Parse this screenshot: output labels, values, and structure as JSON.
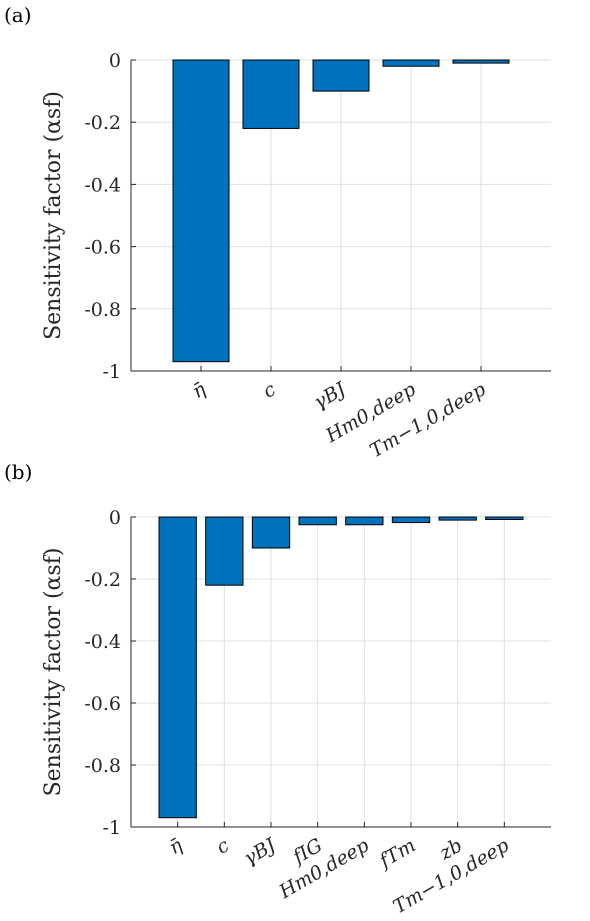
{
  "chart_data": [
    {
      "type": "bar",
      "panel_label": "(a)",
      "ylabel": "Sensitivity factor (αsf)",
      "ylim": [
        -1,
        0
      ],
      "yticks": [
        0,
        -0.2,
        -0.4,
        -0.6,
        -0.8,
        -1
      ],
      "ytick_labels": [
        "0",
        "-0.2",
        "-0.4",
        "-0.6",
        "-0.8",
        "-1"
      ],
      "grid": true,
      "categories": [
        "η̄",
        "c",
        "γBJ",
        "Hm0,deep",
        "Tm−1,0,deep"
      ],
      "values": [
        -0.97,
        -0.22,
        -0.1,
        -0.02,
        -0.01
      ],
      "bar_color": "#0072bd"
    },
    {
      "type": "bar",
      "panel_label": "(b)",
      "ylabel": "Sensitivity factor (αsf)",
      "ylim": [
        -1,
        0
      ],
      "yticks": [
        0,
        -0.2,
        -0.4,
        -0.6,
        -0.8,
        -1
      ],
      "ytick_labels": [
        "0",
        "-0.2",
        "-0.4",
        "-0.6",
        "-0.8",
        "-1"
      ],
      "grid": true,
      "categories": [
        "η̄",
        "c",
        "γBJ",
        "fIG",
        "Hm0,deep",
        "fTm",
        "zb",
        "Tm−1,0,deep"
      ],
      "values": [
        -0.97,
        -0.22,
        -0.1,
        -0.025,
        -0.025,
        -0.018,
        -0.01,
        -0.008
      ],
      "bar_color": "#0072bd"
    }
  ]
}
